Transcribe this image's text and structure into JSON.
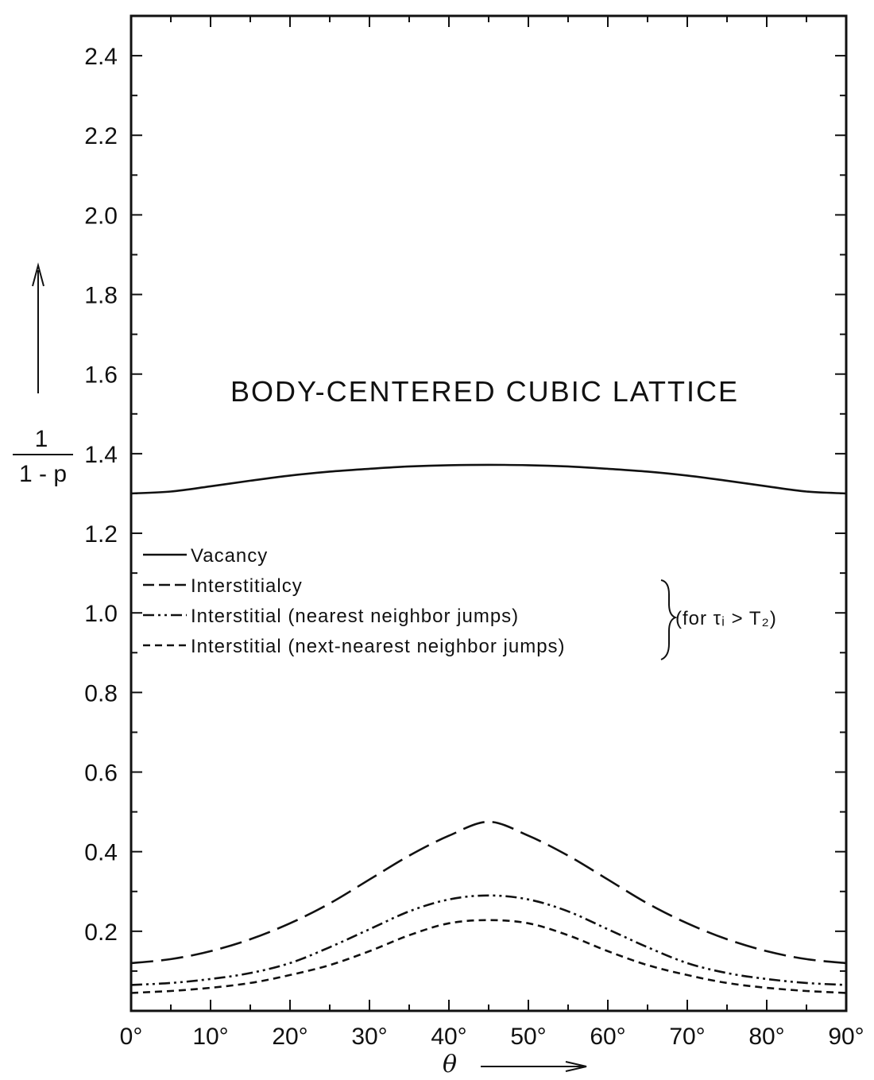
{
  "chart_data": {
    "type": "line",
    "title": "BODY-CENTERED CUBIC LATTICE",
    "xlabel": "θ",
    "ylabel_numerator": "1",
    "ylabel_denominator": "1 - p",
    "xlim": [
      0,
      90
    ],
    "ylim": [
      0,
      2.5
    ],
    "x_ticks": [
      0,
      10,
      20,
      30,
      40,
      50,
      60,
      70,
      80,
      90
    ],
    "x_tick_labels": [
      "0°",
      "10°",
      "20°",
      "30°",
      "40°",
      "50°",
      "60°",
      "70°",
      "80°",
      "90°"
    ],
    "y_ticks": [
      0.2,
      0.4,
      0.6,
      0.8,
      1.0,
      1.2,
      1.4,
      1.6,
      1.8,
      2.0,
      2.2,
      2.4
    ],
    "y_tick_labels": [
      "0.2",
      "0.4",
      "0.6",
      "0.8",
      "1.0",
      "1.2",
      "1.4",
      "1.6",
      "1.8",
      "2.0",
      "2.2",
      "2.4"
    ],
    "grid": false,
    "legend_position": "middle-left",
    "legend_group_note": "(for τᵢ > T₂)",
    "x": [
      0,
      5,
      10,
      15,
      20,
      25,
      30,
      35,
      40,
      45,
      50,
      55,
      60,
      65,
      70,
      75,
      80,
      85,
      90
    ],
    "series": [
      {
        "name": "Vacancy",
        "style": "solid",
        "values": [
          1.3,
          1.305,
          1.318,
          1.332,
          1.345,
          1.355,
          1.362,
          1.368,
          1.371,
          1.372,
          1.371,
          1.368,
          1.362,
          1.355,
          1.345,
          1.332,
          1.318,
          1.305,
          1.3
        ]
      },
      {
        "name": "Interstitialcy",
        "style": "long-dash",
        "values": [
          0.12,
          0.13,
          0.15,
          0.18,
          0.22,
          0.27,
          0.33,
          0.39,
          0.44,
          0.475,
          0.44,
          0.39,
          0.33,
          0.27,
          0.22,
          0.18,
          0.15,
          0.13,
          0.12
        ]
      },
      {
        "name": "Interstitial (nearest neighbor jumps)",
        "style": "dash-dot-dot",
        "values": [
          0.065,
          0.07,
          0.08,
          0.095,
          0.12,
          0.16,
          0.205,
          0.25,
          0.28,
          0.29,
          0.28,
          0.25,
          0.205,
          0.16,
          0.12,
          0.095,
          0.08,
          0.07,
          0.065
        ]
      },
      {
        "name": "Interstitial (next-nearest neighbor jumps)",
        "style": "short-dash",
        "values": [
          0.045,
          0.05,
          0.058,
          0.07,
          0.09,
          0.115,
          0.15,
          0.19,
          0.22,
          0.228,
          0.22,
          0.19,
          0.15,
          0.115,
          0.09,
          0.07,
          0.058,
          0.05,
          0.045
        ]
      }
    ]
  }
}
